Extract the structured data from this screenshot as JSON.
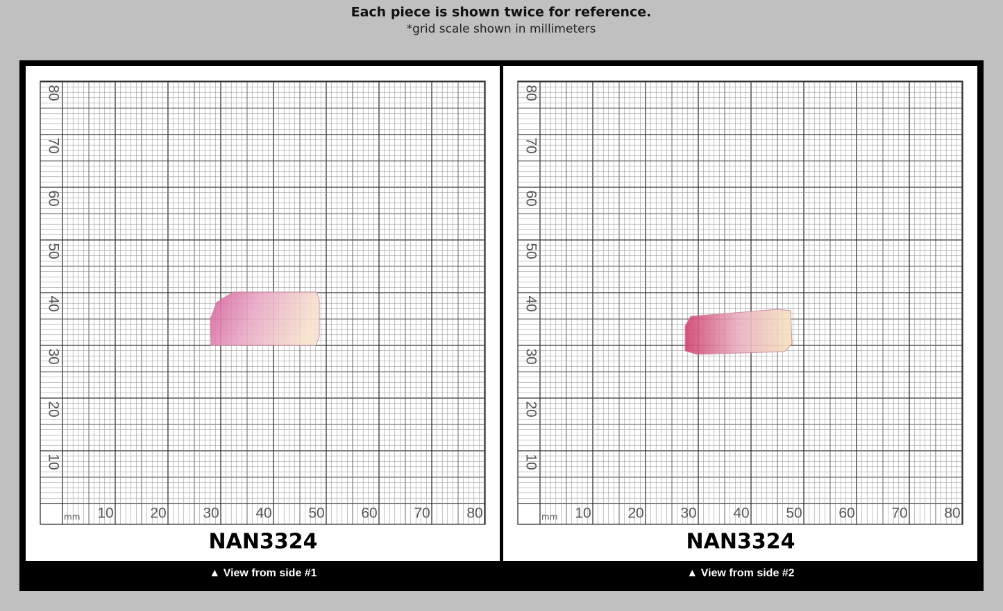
{
  "header": {
    "title": "Each piece is shown twice for reference.",
    "subtitle": "*grid scale shown in millimeters"
  },
  "panels": [
    {
      "grid": {
        "unit": "mm",
        "x_labels": [
          "10",
          "20",
          "30",
          "40",
          "50",
          "60",
          "70",
          "80"
        ],
        "y_labels": [
          "10",
          "20",
          "30",
          "40",
          "50",
          "60",
          "70",
          "80"
        ]
      },
      "sample_id": "NAN3324",
      "caption": "▲ View from side #1"
    },
    {
      "grid": {
        "unit": "mm",
        "x_labels": [
          "10",
          "20",
          "30",
          "40",
          "50",
          "60",
          "70",
          "80"
        ],
        "y_labels": [
          "10",
          "20",
          "30",
          "40",
          "50",
          "60",
          "70",
          "80"
        ]
      },
      "sample_id": "NAN3324",
      "caption": "▲ View from side #2"
    }
  ]
}
